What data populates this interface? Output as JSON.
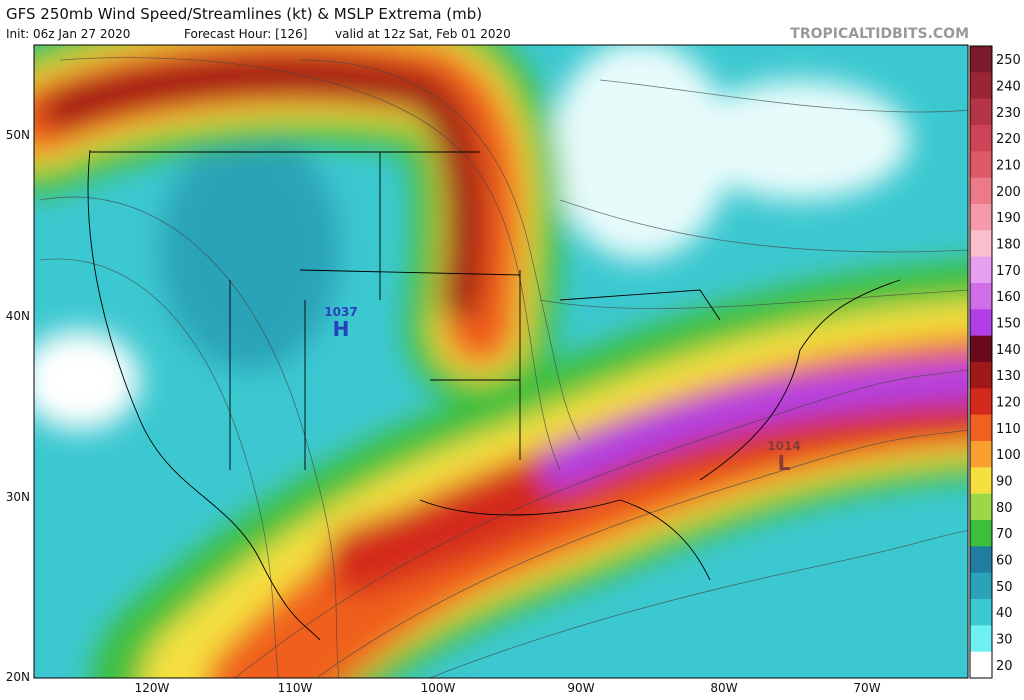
{
  "header": {
    "title": "GFS 250mb Wind Speed/Streamlines (kt) & MSLP Extrema (mb)",
    "init": "Init: 06z Jan 27 2020",
    "forecast_hour": "Forecast Hour: [126]",
    "valid": "valid at 12z Sat, Feb 01 2020",
    "source": "TROPICALTIDBITS.COM"
  },
  "map": {
    "lat_labels": [
      "50N",
      "40N",
      "30N",
      "20N"
    ],
    "lon_labels": [
      "120W",
      "110W",
      "100W",
      "90W",
      "80W",
      "70W"
    ],
    "pressure_centers": [
      {
        "value": "1037",
        "symbol": "H",
        "color": "#2a3fbf"
      },
      {
        "value": "1014",
        "symbol": "L",
        "color": "#8a3a3a"
      }
    ]
  },
  "colorbar": {
    "levels": [
      250,
      240,
      230,
      220,
      210,
      200,
      190,
      180,
      170,
      160,
      150,
      140,
      130,
      120,
      110,
      100,
      90,
      80,
      70,
      60,
      50,
      40,
      30,
      20
    ],
    "colors": [
      "#7a1a2a",
      "#9a2535",
      "#b53545",
      "#cc4455",
      "#dd5a66",
      "#ec7a88",
      "#f59aaa",
      "#f8bfcc",
      "#e7a0f0",
      "#d06ee8",
      "#b040e6",
      "#6a0a1a",
      "#a01818",
      "#d42a1e",
      "#f0601e",
      "#f8a030",
      "#f5e040",
      "#9ad84a",
      "#3cbf3c",
      "#1f7ea0",
      "#2aa3b8",
      "#3cc8d0",
      "#6ff0f0",
      "#ffffff"
    ]
  }
}
